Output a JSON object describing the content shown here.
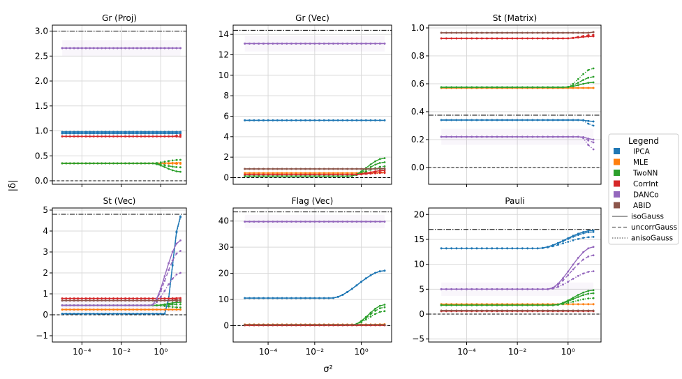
{
  "figure": {
    "xlabel": "σ²",
    "ylabel": "|δ|",
    "xtick_labels": [
      "10⁻⁴",
      "10⁻²",
      "10⁰"
    ]
  },
  "legend": {
    "title": "Legend",
    "method_entries": [
      {
        "label": "lPCA",
        "color": "#1f77b4"
      },
      {
        "label": "MLE",
        "color": "#ff7f0e"
      },
      {
        "label": "TwoNN",
        "color": "#2ca02c"
      },
      {
        "label": "CorrInt",
        "color": "#d62728"
      },
      {
        "label": "DANCo",
        "color": "#9467bd"
      },
      {
        "label": "ABID",
        "color": "#8c564b"
      }
    ],
    "style_entries": [
      {
        "label": "isoGauss",
        "dash": ""
      },
      {
        "label": "uncorrGauss",
        "dash": "5,3"
      },
      {
        "label": "anisoGauss",
        "dash": "1.5,2"
      }
    ]
  },
  "chart_data": [
    {
      "type": "line",
      "title": "Gr (Proj)",
      "xscale": "log",
      "xlim": [
        -5.5,
        1.3
      ],
      "ylim": [
        -0.07,
        3.12
      ],
      "yticks": [
        0.0,
        0.5,
        1.0,
        1.5,
        2.0,
        2.5,
        3.0
      ],
      "ytick_labels": [
        "0.0",
        "0.5",
        "1.0",
        "1.5",
        "2.0",
        "2.5",
        "3.0"
      ],
      "ref_lines": {
        "dashdot": 3.0,
        "dashed": 0.0
      },
      "series": [
        {
          "method": "lPCA",
          "start": 0.98,
          "ends": [
            0.98,
            0.98,
            0.98
          ],
          "change": 0.9
        },
        {
          "method": "lPCA",
          "start": 0.95,
          "ends": [
            0.95,
            0.95,
            0.95
          ],
          "change": 0.9
        },
        {
          "method": "MLE",
          "start": 0.35,
          "ends": [
            0.36,
            0.35,
            0.34
          ],
          "change": -0.3
        },
        {
          "method": "TwoNN",
          "start": 0.35,
          "ends": [
            0.18,
            0.27,
            0.42
          ],
          "change": -0.5
        },
        {
          "method": "CorrInt",
          "start": 0.89,
          "ends": [
            0.88,
            0.9,
            0.92
          ],
          "change": 0.6
        },
        {
          "method": "DANCo",
          "start": 2.66,
          "ends": [
            2.66,
            2.66,
            2.66
          ],
          "change": 0.9
        }
      ]
    },
    {
      "type": "line",
      "title": "Gr (Vec)",
      "xscale": "log",
      "xlim": [
        -5.5,
        1.3
      ],
      "ylim": [
        -0.65,
        14.9
      ],
      "yticks": [
        0,
        2,
        4,
        6,
        8,
        10,
        12,
        14
      ],
      "ytick_labels": [
        "0",
        "2",
        "4",
        "6",
        "8",
        "10",
        "12",
        "14"
      ],
      "ref_lines": {
        "dashdot": 14.4,
        "dashed": 0.0
      },
      "series": [
        {
          "method": "lPCA",
          "start": 5.6,
          "ends": [
            5.6,
            5.6,
            5.6
          ],
          "change": 0.9
        },
        {
          "method": "MLE",
          "start": 0.45,
          "ends": [
            0.5,
            0.48,
            0.52
          ],
          "change": 0.5
        },
        {
          "method": "TwoNN",
          "start": 0.15,
          "ends": [
            1.9,
            1.5,
            1.1
          ],
          "change": -0.5
        },
        {
          "method": "CorrInt",
          "start": 0.3,
          "ends": [
            0.7,
            0.55,
            0.45
          ],
          "change": -0.3
        },
        {
          "method": "DANCo",
          "start": 13.1,
          "ends": [
            13.1,
            13.1,
            13.1
          ],
          "change": 0.9
        },
        {
          "method": "ABID",
          "start": 0.85,
          "ends": [
            0.9,
            0.85,
            0.8
          ],
          "change": 0.5
        }
      ]
    },
    {
      "type": "line",
      "title": "St (Matrix)",
      "xscale": "log",
      "xlim": [
        -5.5,
        1.3
      ],
      "ylim": [
        -0.12,
        1.02
      ],
      "yticks": [
        0.0,
        0.2,
        0.4,
        0.6,
        0.8,
        1.0
      ],
      "ytick_labels": [
        "0.0",
        "0.2",
        "0.4",
        "0.6",
        "0.8",
        "1.0"
      ],
      "ref_lines": {
        "dashdot": 0.375,
        "dashed": 0.0
      },
      "series": [
        {
          "method": "lPCA",
          "start": 0.34,
          "ends": [
            0.33,
            0.33,
            0.3
          ],
          "change": 0.5
        },
        {
          "method": "MLE",
          "start": 0.57,
          "ends": [
            0.57,
            0.57,
            0.57
          ],
          "change": 0.9
        },
        {
          "method": "TwoNN",
          "start": 0.575,
          "ends": [
            0.61,
            0.65,
            0.71
          ],
          "change": -0.1
        },
        {
          "method": "CorrInt",
          "start": 0.925,
          "ends": [
            0.94,
            0.95,
            0.94
          ],
          "change": -0.1
        },
        {
          "method": "DANCo",
          "start": 0.22,
          "ends": [
            0.2,
            0.18,
            0.13
          ],
          "change": 0.5
        },
        {
          "method": "ABID",
          "start": 0.965,
          "ends": [
            0.97,
            0.97,
            0.97
          ],
          "change": 0.9
        }
      ]
    },
    {
      "type": "line",
      "title": "St (Vec)",
      "xscale": "log",
      "xlim": [
        -5.5,
        1.3
      ],
      "ylim": [
        -1.3,
        5.1
      ],
      "yticks": [
        -1,
        0,
        1,
        2,
        3,
        4,
        5
      ],
      "ytick_labels": [
        "−1",
        "0",
        "1",
        "2",
        "3",
        "4",
        "5"
      ],
      "ref_lines": {
        "dashdot": 4.8,
        "dashed": 0.0
      },
      "series": [
        {
          "method": "lPCA",
          "start": 0.05,
          "ends": [
            4.7,
            4.7,
            4.65
          ],
          "change": 0.2
        },
        {
          "method": "MLE",
          "start": 0.25,
          "ends": [
            0.25,
            0.25,
            0.25
          ],
          "change": 0.9
        },
        {
          "method": "TwoNN",
          "start": 0.45,
          "ends": [
            0.6,
            0.5,
            0.35
          ],
          "change": -0.3
        },
        {
          "method": "CorrInt",
          "start": 0.78,
          "ends": [
            0.8,
            0.75,
            0.7
          ],
          "change": 0.3
        },
        {
          "method": "DANCo",
          "start": 0.45,
          "ends": [
            3.55,
            3.05,
            2.0
          ],
          "change": -0.5
        },
        {
          "method": "ABID",
          "start": 0.68,
          "ends": [
            0.7,
            0.7,
            0.65
          ],
          "change": 0.3
        }
      ]
    },
    {
      "type": "line",
      "title": "Flag (Vec)",
      "xscale": "log",
      "xlim": [
        -5.5,
        1.3
      ],
      "ylim": [
        -6.3,
        45.0
      ],
      "yticks": [
        0,
        10,
        20,
        30,
        40
      ],
      "ytick_labels": [
        "0",
        "10",
        "20",
        "30",
        "40"
      ],
      "ref_lines": {
        "dashdot": 43.5,
        "dashed": 0.0
      },
      "series": [
        {
          "method": "lPCA",
          "start": 10.5,
          "ends": [
            21.0,
            21.0,
            21.0
          ],
          "change": -1.3
        },
        {
          "method": "MLE",
          "start": 0.4,
          "ends": [
            0.5,
            0.45,
            0.4
          ],
          "change": 0.5
        },
        {
          "method": "TwoNN",
          "start": 0.2,
          "ends": [
            8.0,
            7.0,
            5.5
          ],
          "change": -0.4
        },
        {
          "method": "CorrInt",
          "start": 0.1,
          "ends": [
            0.15,
            0.1,
            0.1
          ],
          "change": 0.5
        },
        {
          "method": "DANCo",
          "start": 39.8,
          "ends": [
            39.8,
            39.8,
            39.8
          ],
          "change": 0.9
        },
        {
          "method": "ABID",
          "start": 0.3,
          "ends": [
            0.3,
            0.3,
            0.3
          ],
          "change": 0.9
        }
      ]
    },
    {
      "type": "line",
      "title": "Pauli",
      "xscale": "log",
      "xlim": [
        -5.5,
        1.3
      ],
      "ylim": [
        -5.6,
        21.3
      ],
      "yticks": [
        -5,
        0,
        5,
        10,
        15,
        20
      ],
      "ytick_labels": [
        "−5",
        "0",
        "5",
        "10",
        "15",
        "20"
      ],
      "ref_lines": {
        "dashdot": 17.0,
        "dashed": 0.0
      },
      "series": [
        {
          "method": "lPCA",
          "start": 13.2,
          "ends": [
            16.8,
            16.5,
            15.5
          ],
          "change": -1.2
        },
        {
          "method": "MLE",
          "start": 2.0,
          "ends": [
            2.0,
            2.0,
            2.0
          ],
          "change": 0.9
        },
        {
          "method": "TwoNN",
          "start": 1.8,
          "ends": [
            4.8,
            4.2,
            3.2
          ],
          "change": -0.6
        },
        {
          "method": "CorrInt",
          "start": 0.6,
          "ends": [
            0.6,
            0.6,
            0.6
          ],
          "change": 0.9
        },
        {
          "method": "DANCo",
          "start": 5.0,
          "ends": [
            13.5,
            11.8,
            8.6
          ],
          "change": -0.8
        },
        {
          "method": "ABID",
          "start": 0.7,
          "ends": [
            0.7,
            0.7,
            0.7
          ],
          "change": 0.9
        }
      ]
    }
  ]
}
